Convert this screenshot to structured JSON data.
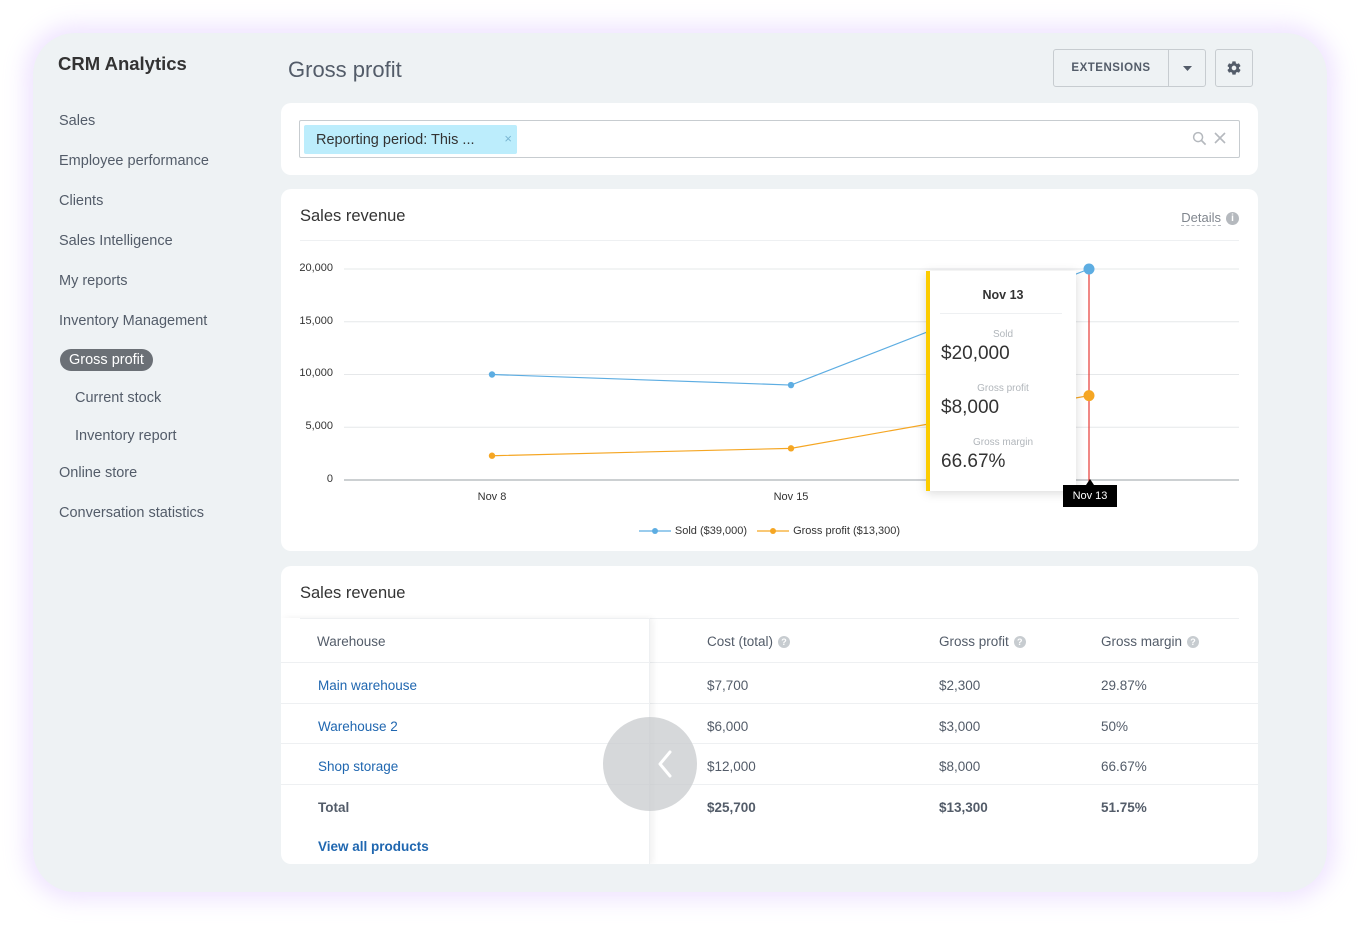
{
  "app": {
    "title": "CRM Analytics"
  },
  "sidebar": {
    "items": [
      {
        "label": "Sales"
      },
      {
        "label": "Employee performance"
      },
      {
        "label": "Clients"
      },
      {
        "label": "Sales Intelligence"
      },
      {
        "label": "My reports"
      },
      {
        "label": "Inventory Management"
      },
      {
        "label": "Gross profit",
        "active": true
      },
      {
        "label": "Current stock"
      },
      {
        "label": "Inventory report"
      },
      {
        "label": "Online store"
      },
      {
        "label": "Conversation statistics"
      }
    ]
  },
  "header": {
    "page_title": "Gross profit",
    "extensions_label": "EXTENSIONS",
    "icons": {
      "caret": "chevron-down-icon",
      "settings": "gear-icon"
    }
  },
  "filter": {
    "chip_label": "Reporting period: This ...",
    "chip_remove": "×",
    "icons": {
      "search": "search-icon",
      "clear": "close-icon"
    }
  },
  "chart_card": {
    "title": "Sales revenue",
    "details_label": "Details",
    "details_icon": "i",
    "tooltip": {
      "date": "Nov 13",
      "sold_caption": "Sold",
      "sold_value": "$20,000",
      "profit_caption": "Gross profit",
      "profit_value": "$8,000",
      "margin_caption": "Gross margin",
      "margin_value": "66.67%"
    },
    "cursor_label": "Nov 13",
    "legend": [
      {
        "label": "Sold ($39,000)",
        "color": "#5dade2"
      },
      {
        "label": "Gross profit ($13,300)",
        "color": "#f5a623"
      }
    ]
  },
  "chart_data": {
    "type": "line",
    "y_ticks": [
      "20,000",
      "15,000",
      "10,000",
      "5,000",
      "0"
    ],
    "x_ticks": [
      "Nov 8",
      "Nov 15"
    ],
    "ylim": [
      0,
      20000
    ],
    "series": [
      {
        "name": "Sold",
        "color": "#5dade2",
        "x": [
          "Nov 8",
          "Nov 15",
          "Nov 13"
        ],
        "values": [
          10000,
          9000,
          20000
        ]
      },
      {
        "name": "Gross profit",
        "color": "#f5a623",
        "x": [
          "Nov 8",
          "Nov 15",
          "Nov 13"
        ],
        "values": [
          2300,
          3000,
          8000
        ]
      }
    ]
  },
  "table_card": {
    "title": "Sales revenue",
    "columns": [
      "Warehouse",
      "Cost (total)",
      "Gross profit",
      "Gross margin"
    ],
    "help_icon": "?",
    "rows": [
      {
        "warehouse": "Main warehouse",
        "cost": "$7,700",
        "profit": "$2,300",
        "margin": "29.87%"
      },
      {
        "warehouse": "Warehouse 2",
        "cost": "$6,000",
        "profit": "$3,000",
        "margin": "50%"
      },
      {
        "warehouse": "Shop storage",
        "cost": "$12,000",
        "profit": "$8,000",
        "margin": "66.67%"
      }
    ],
    "total": {
      "label": "Total",
      "cost": "$25,700",
      "profit": "$13,300",
      "margin": "51.75%"
    },
    "view_all_label": "View all products"
  }
}
